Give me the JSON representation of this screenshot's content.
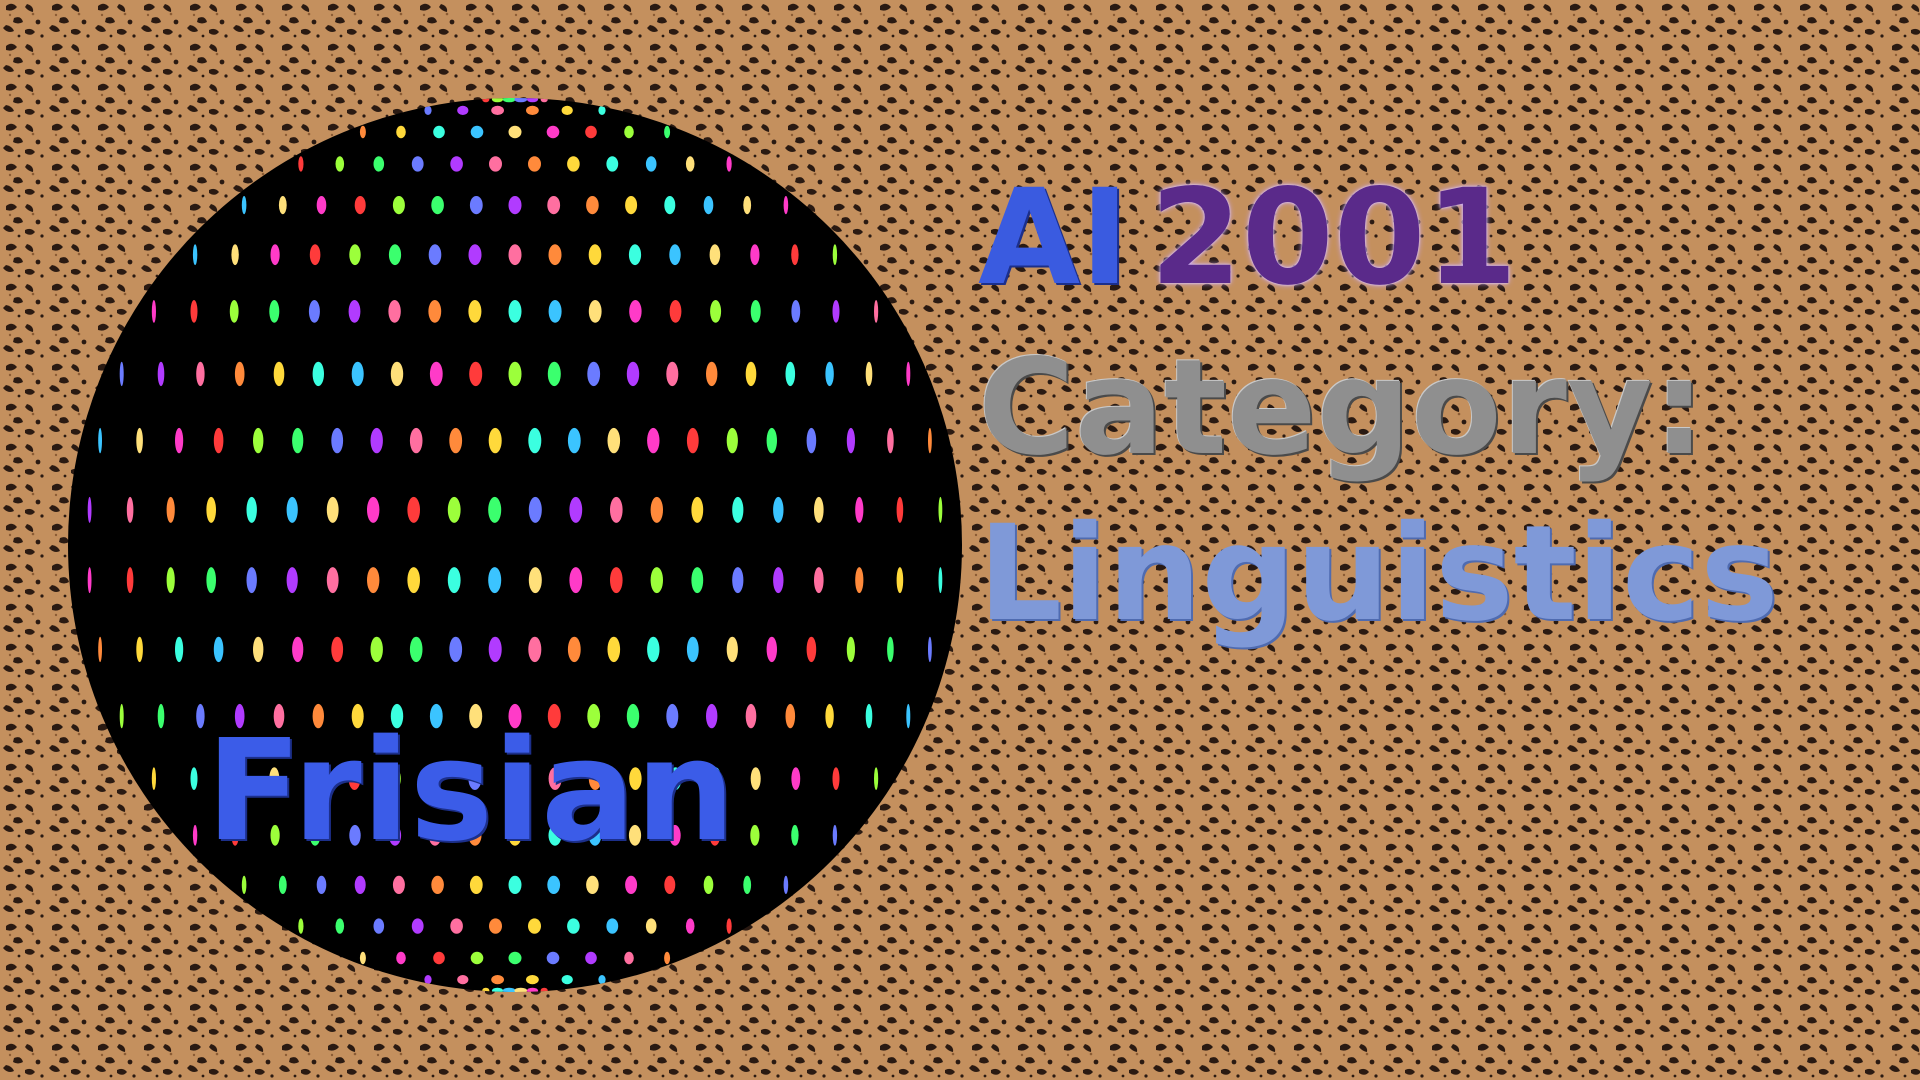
{
  "title_badge": {
    "brand": "AI",
    "year": "2001",
    "category_line": "Category:",
    "subject_line": "Linguistics"
  },
  "globe": {
    "label": "Frisian"
  },
  "colors": {
    "background": "#c4905e",
    "background_spots": "#2a1a12",
    "globe_body": "#000000",
    "brand": "#3a5be0",
    "year": "#5a2a8a",
    "category_line": "#8f8f8f",
    "subject_line": "#7f99d8",
    "globe_label": "#3b5ce8"
  },
  "icons": {
    "background": "leopard-print-pattern",
    "globe": "disco-ball-icon"
  }
}
